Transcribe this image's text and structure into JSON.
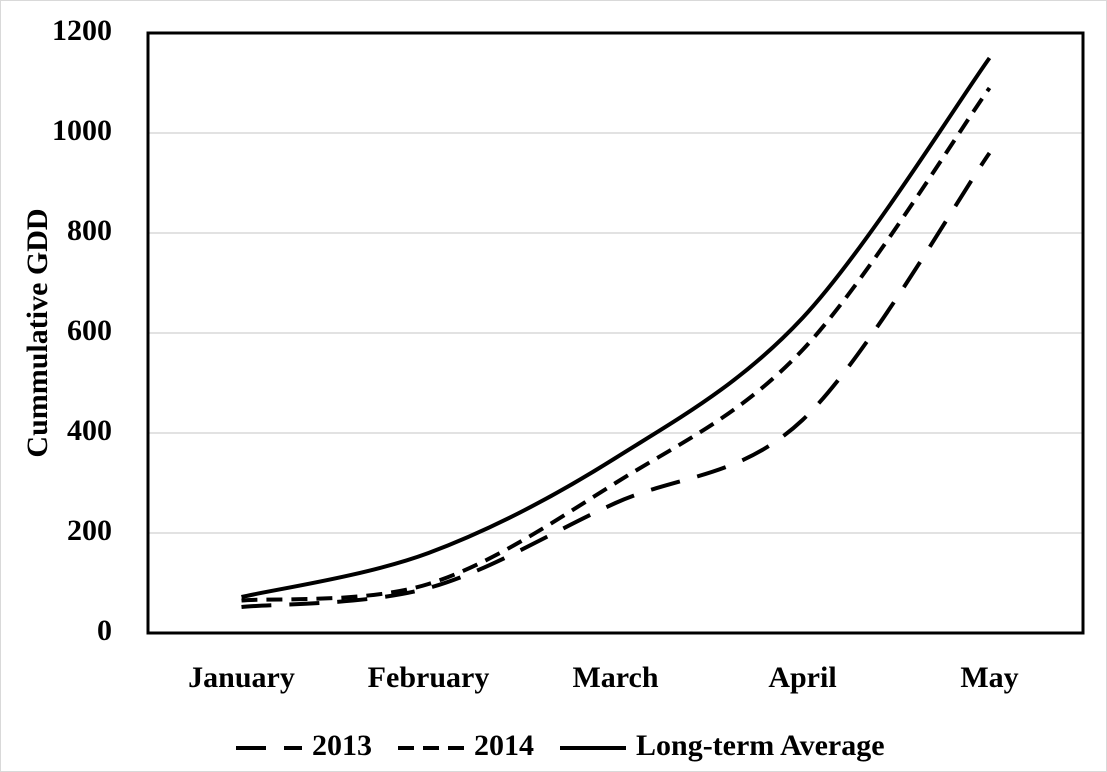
{
  "chart_data": {
    "type": "line",
    "y_label": "Cummulative GDD",
    "categories": [
      "January",
      "February",
      "March",
      "April",
      "May"
    ],
    "series": [
      {
        "name": "2013",
        "color": "#000000",
        "line_style": "long-dash",
        "values": [
          52,
          90,
          260,
          426,
          960
        ]
      },
      {
        "name": "2014",
        "color": "#000000",
        "line_style": "short-dash",
        "values": [
          65,
          98,
          300,
          566,
          1090
        ]
      },
      {
        "name": "Long-term Average",
        "color": "#000000",
        "line_style": "solid",
        "values": [
          72,
          160,
          350,
          630,
          1150
        ]
      }
    ],
    "ylim": [
      0,
      1200
    ],
    "yticks": [
      0,
      200,
      400,
      600,
      800,
      1000,
      1200
    ],
    "grid": true,
    "legend": "bottom"
  }
}
